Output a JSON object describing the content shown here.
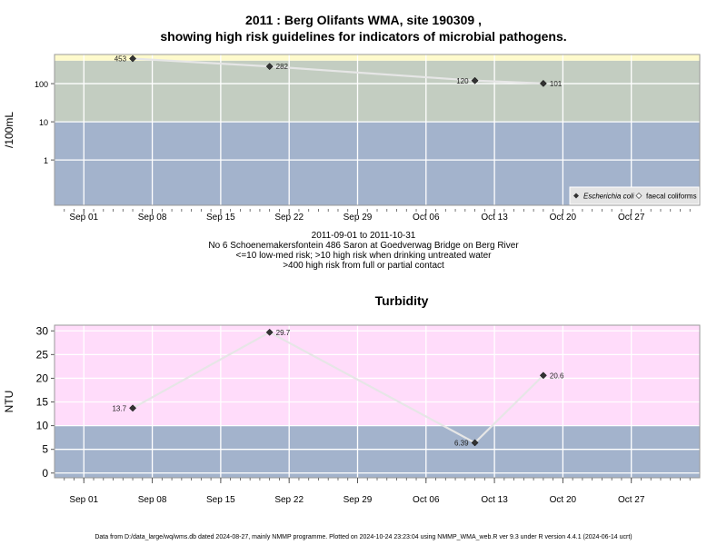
{
  "header": {
    "title_line1": "2011 : Berg Olifants WMA, site 190309 ,",
    "title_line2": "showing high risk guidelines for indicators of microbial pathogens."
  },
  "caption": {
    "date_range": "2011-09-01 to 2011-10-31",
    "site": "No 6 Schoenemakersfontein 486 Saron at Goedverwag Bridge on Berg River",
    "risk1": "<=10 low-med risk; >10 high risk when drinking untreated water",
    "risk2": ">400 high risk from full or partial contact"
  },
  "footer": {
    "text": "Data from D:/data_large/wq/wms.db dated 2024-08-27, mainly NMMP programme. Plotted on 2024-10-24 23:23:04 using NMMP_WMA_web.R ver 9.3 under R version 4.4.1 (2024-06-14 ucrt)"
  },
  "colors": {
    "band_low": "#a3b3cc",
    "band_mid": "#c3cdc1",
    "band_high": "#fefacc",
    "band_pink": "#ffdcfa",
    "line": "#e6e6e6",
    "point": "#333333"
  },
  "chart_data": [
    {
      "type": "line",
      "scale": "log",
      "title": "",
      "ylabel": "/100mL",
      "x_ticks": [
        "Sep 01",
        "Sep 08",
        "Sep 15",
        "Sep 22",
        "Sep 29",
        "Oct 06",
        "Oct 13",
        "Oct 20",
        "Oct 27"
      ],
      "x_tick_dates": [
        "2011-09-01",
        "2011-09-08",
        "2011-09-15",
        "2011-09-22",
        "2011-09-29",
        "2011-10-06",
        "2011-10-13",
        "2011-10-20",
        "2011-10-27"
      ],
      "x_range": [
        "2011-08-29",
        "2011-11-03"
      ],
      "y_ticks": [
        1,
        10,
        100
      ],
      "y_tick_labels": [
        "1",
        "10",
        "100"
      ],
      "ylim": [
        0.065,
        580
      ],
      "bands": [
        {
          "from": 0.065,
          "to": 10,
          "color": "#a3b3cc"
        },
        {
          "from": 10,
          "to": 400,
          "color": "#c3cdc1"
        },
        {
          "from": 400,
          "to": 580,
          "color": "#fefacc"
        }
      ],
      "series": [
        {
          "name": "Escherichia coli",
          "marker": "filled-diamond",
          "x": [
            "2011-09-06",
            "2011-09-20",
            "2011-10-11",
            "2011-10-18"
          ],
          "values": [
            453,
            282,
            120,
            101
          ],
          "labels": [
            "453",
            "282",
            "120",
            "101"
          ],
          "label_side": [
            "left",
            "right",
            "left",
            "right"
          ]
        }
      ],
      "legend": {
        "position": "bottom-right",
        "entries": [
          "Escherichia coli",
          "faecal coliforms"
        ]
      }
    },
    {
      "type": "line",
      "scale": "linear",
      "title": "Turbidity",
      "ylabel": "NTU",
      "x_ticks": [
        "Sep 01",
        "Sep 08",
        "Sep 15",
        "Sep 22",
        "Sep 29",
        "Oct 06",
        "Oct 13",
        "Oct 20",
        "Oct 27"
      ],
      "x_tick_dates": [
        "2011-09-01",
        "2011-09-08",
        "2011-09-15",
        "2011-09-22",
        "2011-09-29",
        "2011-10-06",
        "2011-10-13",
        "2011-10-20",
        "2011-10-27"
      ],
      "x_range": [
        "2011-08-29",
        "2011-11-03"
      ],
      "y_ticks": [
        0,
        5,
        10,
        15,
        20,
        25,
        30
      ],
      "y_tick_labels": [
        "0",
        "5",
        "10",
        "15",
        "20",
        "25",
        "30"
      ],
      "ylim": [
        -1,
        31.2
      ],
      "bands": [
        {
          "from": -1,
          "to": 10,
          "color": "#a3b3cc"
        },
        {
          "from": 10,
          "to": 31.2,
          "color": "#ffdcfa"
        }
      ],
      "series": [
        {
          "name": "",
          "marker": "filled-diamond",
          "x": [
            "2011-09-06",
            "2011-09-20",
            "2011-10-11",
            "2011-10-18"
          ],
          "values": [
            13.7,
            29.7,
            6.39,
            20.6
          ],
          "labels": [
            "13.7",
            "29.7",
            "6.39",
            "20.6"
          ],
          "label_side": [
            "left",
            "right",
            "left",
            "right"
          ]
        }
      ]
    }
  ]
}
